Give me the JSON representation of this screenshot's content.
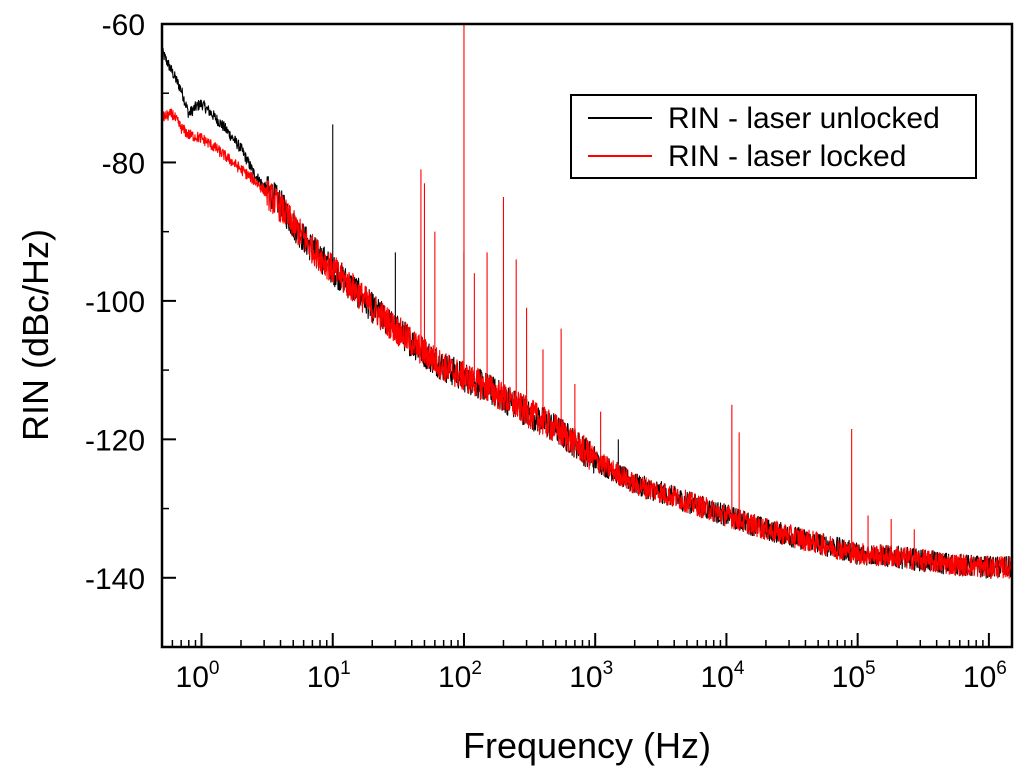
{
  "chart_data": {
    "type": "line",
    "title": "",
    "xlabel": "Frequency (Hz)",
    "ylabel": "RIN (dBc/Hz)",
    "x_scale": "log",
    "xlim": [
      0.5,
      1500000
    ],
    "ylim": [
      -150,
      -60
    ],
    "x_ticks": [
      {
        "base": "10",
        "exp": "0",
        "value": 1
      },
      {
        "base": "10",
        "exp": "1",
        "value": 10
      },
      {
        "base": "10",
        "exp": "2",
        "value": 100
      },
      {
        "base": "10",
        "exp": "3",
        "value": 1000
      },
      {
        "base": "10",
        "exp": "4",
        "value": 10000
      },
      {
        "base": "10",
        "exp": "5",
        "value": 100000
      },
      {
        "base": "10",
        "exp": "6",
        "value": 1000000
      }
    ],
    "y_ticks": [
      "-60",
      "-80",
      "-100",
      "-120",
      "-140"
    ],
    "y_tick_values": [
      -60,
      -80,
      -100,
      -120,
      -140
    ],
    "grid": false,
    "legend_position": "top-right",
    "series": [
      {
        "name": "RIN - laser unlocked",
        "color": "#000000",
        "points": [
          [
            0.5,
            -64
          ],
          [
            0.6,
            -67
          ],
          [
            0.7,
            -69.5
          ],
          [
            0.8,
            -73
          ],
          [
            0.9,
            -72
          ],
          [
            1.0,
            -71.5
          ],
          [
            1.2,
            -73
          ],
          [
            1.5,
            -75
          ],
          [
            2,
            -78
          ],
          [
            2.5,
            -81.5
          ],
          [
            3,
            -83.5
          ],
          [
            4,
            -86
          ],
          [
            5,
            -89
          ],
          [
            7,
            -92.5
          ],
          [
            10,
            -95.5
          ],
          [
            15,
            -98.5
          ],
          [
            20,
            -101
          ],
          [
            30,
            -104
          ],
          [
            50,
            -107.5
          ],
          [
            70,
            -109.5
          ],
          [
            100,
            -111
          ],
          [
            150,
            -112.5
          ],
          [
            200,
            -114
          ],
          [
            300,
            -116
          ],
          [
            500,
            -118.5
          ],
          [
            700,
            -120.5
          ],
          [
            1000,
            -123
          ],
          [
            1500,
            -125
          ],
          [
            2000,
            -126.5
          ],
          [
            3000,
            -127.5
          ],
          [
            5000,
            -129
          ],
          [
            10000,
            -131
          ],
          [
            20000,
            -133
          ],
          [
            50000,
            -135
          ],
          [
            100000,
            -136.5
          ],
          [
            200000,
            -137
          ],
          [
            500000,
            -138
          ],
          [
            1000000,
            -138.5
          ],
          [
            1500000,
            -138.5
          ]
        ],
        "spikes": [
          [
            10,
            -74.5
          ],
          [
            30,
            -93
          ],
          [
            100,
            -93
          ],
          [
            1500,
            -120
          ]
        ]
      },
      {
        "name": "RIN - laser locked",
        "color": "#ff0000",
        "points": [
          [
            0.5,
            -73.5
          ],
          [
            0.6,
            -73
          ],
          [
            0.7,
            -75
          ],
          [
            0.8,
            -76
          ],
          [
            1.0,
            -76.5
          ],
          [
            1.2,
            -77.5
          ],
          [
            1.5,
            -79
          ],
          [
            2,
            -81
          ],
          [
            2.5,
            -82.5
          ],
          [
            3,
            -84
          ],
          [
            4,
            -86.5
          ],
          [
            5,
            -89
          ],
          [
            7,
            -92.5
          ],
          [
            10,
            -95.5
          ],
          [
            15,
            -98.5
          ],
          [
            20,
            -101
          ],
          [
            30,
            -104
          ],
          [
            50,
            -107.5
          ],
          [
            70,
            -109.5
          ],
          [
            100,
            -111
          ],
          [
            150,
            -112.5
          ],
          [
            200,
            -114
          ],
          [
            300,
            -116
          ],
          [
            500,
            -118.5
          ],
          [
            700,
            -120.5
          ],
          [
            1000,
            -123
          ],
          [
            1500,
            -125
          ],
          [
            2000,
            -126.5
          ],
          [
            3000,
            -127.5
          ],
          [
            5000,
            -129
          ],
          [
            10000,
            -131
          ],
          [
            20000,
            -133
          ],
          [
            50000,
            -135
          ],
          [
            100000,
            -136.5
          ],
          [
            200000,
            -137
          ],
          [
            500000,
            -138
          ],
          [
            1000000,
            -138.5
          ],
          [
            1500000,
            -138.5
          ]
        ],
        "spikes": [
          [
            47,
            -81
          ],
          [
            50,
            -83
          ],
          [
            60,
            -90
          ],
          [
            100,
            -60
          ],
          [
            120,
            -96
          ],
          [
            150,
            -93
          ],
          [
            200,
            -85
          ],
          [
            250,
            -94
          ],
          [
            300,
            -101
          ],
          [
            400,
            -107
          ],
          [
            550,
            -104
          ],
          [
            700,
            -112
          ],
          [
            1100,
            -116
          ],
          [
            11000,
            -115
          ],
          [
            12500,
            -119
          ],
          [
            90000,
            -118.5
          ],
          [
            120000,
            -131
          ],
          [
            180000,
            -131.5
          ],
          [
            270000,
            -133
          ]
        ]
      }
    ]
  }
}
